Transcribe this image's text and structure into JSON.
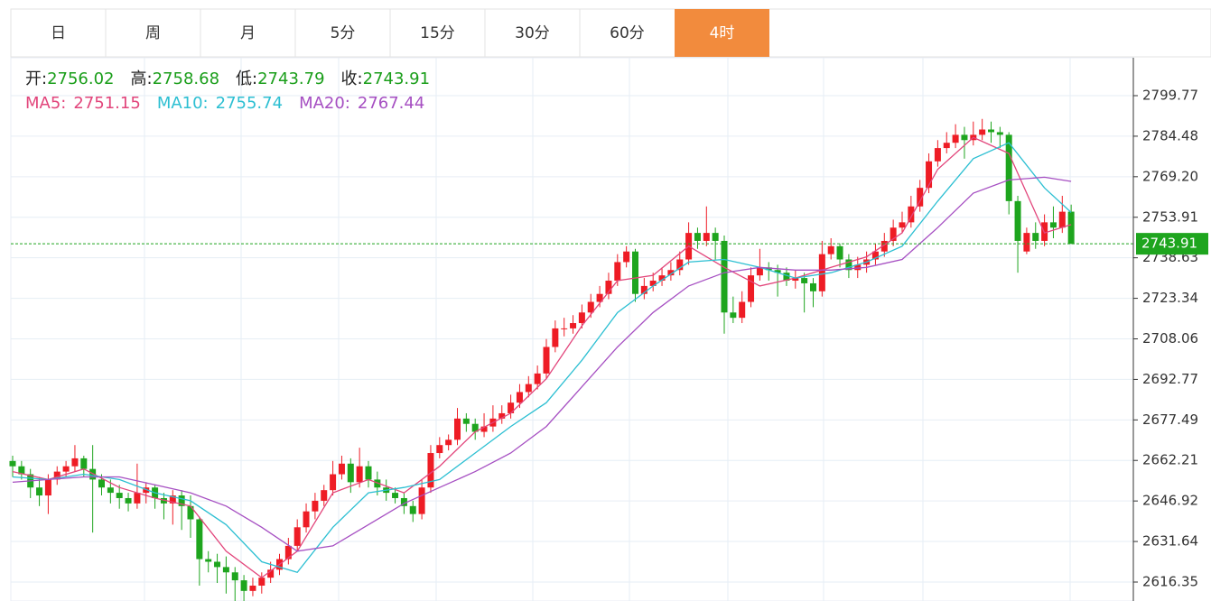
{
  "tabs": [
    "日",
    "周",
    "月",
    "5分",
    "15分",
    "30分",
    "60分",
    "4时"
  ],
  "active_tab": 7,
  "chart_data": {
    "type": "candlestick",
    "quote_labels": [
      "开:",
      "高:",
      "低:",
      "收:"
    ],
    "up_color": "#ee1c25",
    "down_color": "#1ea51e",
    "ylim": [
      2609.2,
      2814.06
    ],
    "yticks": [
      2616.35,
      2631.64,
      2646.92,
      2662.21,
      2677.49,
      2692.77,
      2708.06,
      2723.34,
      2738.63,
      2753.91,
      {
        "value": 2769.2,
        "label": "2769.20"
      },
      2784.48,
      2799.77
    ],
    "grid": true,
    "candles": [
      [
        2662,
        2664,
        2656,
        2660
      ],
      [
        2660,
        2662,
        2655,
        2657
      ],
      [
        2657,
        2659,
        2648,
        2652
      ],
      [
        2652,
        2656,
        2645,
        2649
      ],
      [
        2649,
        2657,
        2642,
        2655
      ],
      [
        2655,
        2660,
        2653,
        2658
      ],
      [
        2658,
        2662,
        2656,
        2660
      ],
      [
        2660,
        2668,
        2658,
        2663
      ],
      [
        2663,
        2664,
        2656,
        2659
      ],
      [
        2659,
        2668,
        2635,
        2655
      ],
      [
        2655,
        2657,
        2649,
        2652
      ],
      [
        2652,
        2655,
        2646,
        2650
      ],
      [
        2650,
        2653,
        2644,
        2648
      ],
      [
        2648,
        2650,
        2643,
        2646
      ],
      [
        2646,
        2661,
        2644,
        2650
      ],
      [
        2650,
        2654,
        2646,
        2652
      ],
      [
        2652,
        2653,
        2644,
        2648
      ],
      [
        2648,
        2650,
        2640,
        2646
      ],
      [
        2646,
        2651,
        2638,
        2649
      ],
      [
        2649,
        2651,
        2636,
        2645
      ],
      [
        2645,
        2649,
        2633,
        2640
      ],
      [
        2640,
        2641,
        2615,
        2625
      ],
      [
        2625,
        2628,
        2620,
        2624
      ],
      [
        2624,
        2627,
        2616,
        2622
      ],
      [
        2622,
        2626,
        2612,
        2620
      ],
      [
        2620,
        2622,
        2609,
        2617
      ],
      [
        2617,
        2619,
        2609,
        2613
      ],
      [
        2613,
        2618,
        2611,
        2615
      ],
      [
        2615,
        2620,
        2612,
        2618
      ],
      [
        2618,
        2624,
        2616,
        2621
      ],
      [
        2621,
        2627,
        2619,
        2625
      ],
      [
        2625,
        2633,
        2623,
        2630
      ],
      [
        2630,
        2640,
        2628,
        2637
      ],
      [
        2637,
        2646,
        2635,
        2643
      ],
      [
        2643,
        2650,
        2640,
        2647
      ],
      [
        2647,
        2653,
        2645,
        2651
      ],
      [
        2651,
        2662,
        2649,
        2657
      ],
      [
        2657,
        2664,
        2655,
        2661
      ],
      [
        2661,
        2663,
        2650,
        2654
      ],
      [
        2654,
        2667,
        2652,
        2660
      ],
      [
        2660,
        2662,
        2652,
        2655
      ],
      [
        2655,
        2658,
        2649,
        2652
      ],
      [
        2652,
        2655,
        2647,
        2650
      ],
      [
        2650,
        2652,
        2646,
        2648
      ],
      [
        2648,
        2650,
        2642,
        2645
      ],
      [
        2645,
        2647,
        2639,
        2642
      ],
      [
        2642,
        2655,
        2640,
        2652
      ],
      [
        2652,
        2668,
        2650,
        2665
      ],
      [
        2665,
        2671,
        2663,
        2668
      ],
      [
        2668,
        2672,
        2666,
        2670
      ],
      [
        2670,
        2682,
        2668,
        2678
      ],
      [
        2678,
        2680,
        2673,
        2676
      ],
      [
        2676,
        2678,
        2670,
        2673
      ],
      [
        2673,
        2680,
        2671,
        2675
      ],
      [
        2675,
        2683,
        2673,
        2678
      ],
      [
        2678,
        2683,
        2676,
        2680
      ],
      [
        2680,
        2687,
        2678,
        2684
      ],
      [
        2684,
        2691,
        2682,
        2688
      ],
      [
        2688,
        2694,
        2686,
        2691
      ],
      [
        2691,
        2698,
        2689,
        2695
      ],
      [
        2695,
        2708,
        2693,
        2705
      ],
      [
        2705,
        2715,
        2703,
        2712
      ],
      [
        2712,
        2716,
        2709,
        2712
      ],
      [
        2712,
        2717,
        2710,
        2714
      ],
      [
        2714,
        2721,
        2712,
        2718
      ],
      [
        2718,
        2725,
        2716,
        2722
      ],
      [
        2722,
        2728,
        2720,
        2725
      ],
      [
        2725,
        2733,
        2723,
        2730
      ],
      [
        2730,
        2740,
        2728,
        2737
      ],
      [
        2737,
        2743,
        2735,
        2741
      ],
      [
        2741,
        2742,
        2722,
        2725
      ],
      [
        2725,
        2731,
        2723,
        2728
      ],
      [
        2728,
        2733,
        2726,
        2730
      ],
      [
        2730,
        2735,
        2728,
        2732
      ],
      [
        2732,
        2737,
        2730,
        2734
      ],
      [
        2734,
        2741,
        2732,
        2738
      ],
      [
        2738,
        2752,
        2736,
        2748
      ],
      [
        2748,
        2750,
        2742,
        2745
      ],
      [
        2745,
        2758,
        2743,
        2748
      ],
      [
        2748,
        2750,
        2738,
        2745
      ],
      [
        2745,
        2747,
        2710,
        2718
      ],
      [
        2718,
        2724,
        2714,
        2716
      ],
      [
        2716,
        2726,
        2714,
        2722
      ],
      [
        2722,
        2735,
        2720,
        2732
      ],
      [
        2732,
        2742,
        2730,
        2735
      ],
      [
        2735,
        2737,
        2730,
        2734
      ],
      [
        2734,
        2736,
        2724,
        2733
      ],
      [
        2733,
        2735,
        2728,
        2730
      ],
      [
        2730,
        2734,
        2727,
        2731
      ],
      [
        2731,
        2733,
        2718,
        2729
      ],
      [
        2729,
        2731,
        2720,
        2726
      ],
      [
        2726,
        2745,
        2724,
        2740
      ],
      [
        2740,
        2746,
        2738,
        2743
      ],
      [
        2743,
        2744,
        2735,
        2738
      ],
      [
        2738,
        2740,
        2731,
        2734
      ],
      [
        2734,
        2739,
        2731,
        2736
      ],
      [
        2736,
        2741,
        2733,
        2738
      ],
      [
        2738,
        2744,
        2736,
        2741
      ],
      [
        2741,
        2748,
        2739,
        2745
      ],
      [
        2745,
        2753,
        2743,
        2750
      ],
      [
        2750,
        2756,
        2748,
        2752
      ],
      [
        2752,
        2762,
        2750,
        2758
      ],
      [
        2758,
        2768,
        2756,
        2765
      ],
      [
        2765,
        2778,
        2763,
        2775
      ],
      [
        2775,
        2783,
        2773,
        2780
      ],
      [
        2780,
        2786,
        2778,
        2782
      ],
      [
        2782,
        2789,
        2780,
        2785
      ],
      [
        2785,
        2788,
        2776,
        2783
      ],
      [
        2783,
        2790,
        2781,
        2785
      ],
      [
        2785,
        2791,
        2783,
        2787
      ],
      [
        2787,
        2790,
        2782,
        2786
      ],
      [
        2786,
        2788,
        2780,
        2785
      ],
      [
        2785,
        2786,
        2755,
        2760
      ],
      [
        2760,
        2762,
        2733,
        2745
      ],
      [
        2741,
        2750,
        2740,
        2748
      ],
      [
        2748,
        2752,
        2742,
        2745
      ],
      [
        2745,
        2755,
        2743,
        2752
      ],
      [
        2752,
        2758,
        2746,
        2750
      ],
      [
        2750,
        2762,
        2748,
        2756
      ],
      [
        2756.02,
        2758.68,
        2743.79,
        2743.91
      ]
    ],
    "series": [
      {
        "name": "MA5:",
        "color": "#e2457b",
        "x": [
          0,
          4,
          8,
          12,
          16,
          20,
          24,
          28,
          32,
          36,
          40,
          44,
          48,
          52,
          56,
          60,
          64,
          68,
          72,
          76,
          80,
          84,
          88,
          92,
          96,
          100,
          104,
          108,
          112,
          116,
          119
        ],
        "values": [
          2658,
          2655,
          2659,
          2652,
          2648,
          2645,
          2628,
          2618,
          2628,
          2650,
          2655,
          2650,
          2660,
          2673,
          2680,
          2693,
          2713,
          2730,
          2732,
          2743,
          2735,
          2728,
          2731,
          2735,
          2739,
          2748,
          2772,
          2784,
          2778,
          2748,
          2751.15
        ]
      },
      {
        "name": "MA10:",
        "color": "#2cbfd2",
        "x": [
          0,
          4,
          8,
          12,
          16,
          20,
          24,
          28,
          32,
          36,
          40,
          44,
          48,
          52,
          56,
          60,
          64,
          68,
          72,
          76,
          80,
          84,
          88,
          92,
          96,
          100,
          104,
          108,
          112,
          116,
          119
        ],
        "values": [
          2656,
          2655,
          2657,
          2655,
          2650,
          2647,
          2638,
          2624,
          2620,
          2637,
          2650,
          2652,
          2655,
          2665,
          2675,
          2684,
          2700,
          2718,
          2728,
          2737,
          2738,
          2735,
          2731,
          2733,
          2737,
          2743,
          2760,
          2776,
          2782,
          2765,
          2755.74
        ]
      },
      {
        "name": "MA20:",
        "color": "#a64fc2",
        "x": [
          0,
          4,
          8,
          12,
          16,
          20,
          24,
          28,
          32,
          36,
          40,
          44,
          48,
          52,
          56,
          60,
          64,
          68,
          72,
          76,
          80,
          84,
          88,
          92,
          96,
          100,
          104,
          108,
          112,
          116,
          119
        ],
        "values": [
          2654,
          2655,
          2656,
          2656,
          2653,
          2650,
          2645,
          2637,
          2628,
          2630,
          2638,
          2646,
          2652,
          2658,
          2665,
          2675,
          2690,
          2705,
          2718,
          2728,
          2733,
          2735,
          2734,
          2734,
          2735,
          2738,
          2750,
          2763,
          2768,
          2769,
          2767.44
        ]
      }
    ]
  }
}
